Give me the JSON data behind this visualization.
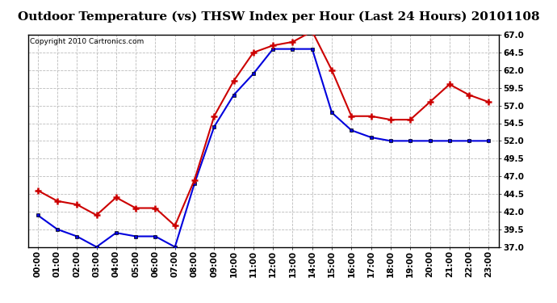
{
  "title": "Outdoor Temperature (vs) THSW Index per Hour (Last 24 Hours) 20101108",
  "copyright_text": "Copyright 2010 Cartronics.com",
  "hours": [
    "00:00",
    "01:00",
    "02:00",
    "03:00",
    "04:00",
    "05:00",
    "06:00",
    "07:00",
    "08:00",
    "09:00",
    "10:00",
    "11:00",
    "12:00",
    "13:00",
    "14:00",
    "15:00",
    "16:00",
    "17:00",
    "18:00",
    "19:00",
    "20:00",
    "21:00",
    "22:00",
    "23:00"
  ],
  "temp_blue": [
    41.5,
    39.5,
    38.5,
    37.0,
    39.0,
    38.5,
    38.5,
    37.0,
    46.0,
    54.0,
    58.5,
    61.5,
    65.0,
    65.0,
    65.0,
    56.0,
    53.5,
    52.5,
    52.0,
    52.0,
    52.0,
    52.0,
    52.0,
    52.0
  ],
  "thsw_red": [
    45.0,
    43.5,
    43.0,
    41.5,
    44.0,
    42.5,
    42.5,
    40.0,
    46.5,
    55.5,
    60.5,
    64.5,
    65.5,
    66.0,
    67.5,
    62.0,
    55.5,
    55.5,
    55.0,
    55.0,
    57.5,
    60.0,
    58.5,
    57.5
  ],
  "ylim_min": 37.0,
  "ylim_max": 67.0,
  "yticks": [
    37.0,
    39.5,
    42.0,
    44.5,
    47.0,
    49.5,
    52.0,
    54.5,
    57.0,
    59.5,
    62.0,
    64.5,
    67.0
  ],
  "bg_color": "#ffffff",
  "plot_bg_color": "#ffffff",
  "grid_color": "#bbbbbb",
  "blue_color": "#0000dd",
  "red_color": "#cc0000",
  "title_fontsize": 11,
  "tick_fontsize": 7.5,
  "copyright_fontsize": 6.5
}
